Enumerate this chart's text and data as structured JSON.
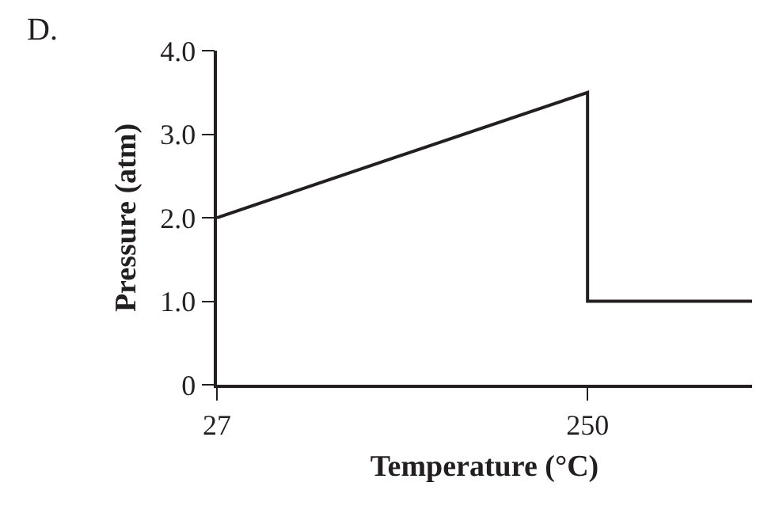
{
  "chart_data": {
    "type": "line",
    "xlabel": "Temperature (°C)",
    "ylabel": "Pressure (atm)",
    "annotations": [
      "D."
    ],
    "x": [
      27,
      250,
      250,
      349
    ],
    "series": [
      {
        "color": "#231f20",
        "values": [
          2.0,
          3.5,
          1.0,
          1.0
        ]
      }
    ],
    "xlim": [
      27,
      349
    ],
    "xticks": [
      27,
      250
    ],
    "ylim": [
      0,
      4
    ],
    "yticks": [
      0,
      {
        "value": 1,
        "label": "1.0"
      },
      {
        "value": 2,
        "label": "2.0"
      },
      {
        "value": 3,
        "label": "3.0"
      },
      {
        "value": 4,
        "label": "4.0"
      }
    ],
    "marker": "none",
    "line_style": "solid"
  }
}
